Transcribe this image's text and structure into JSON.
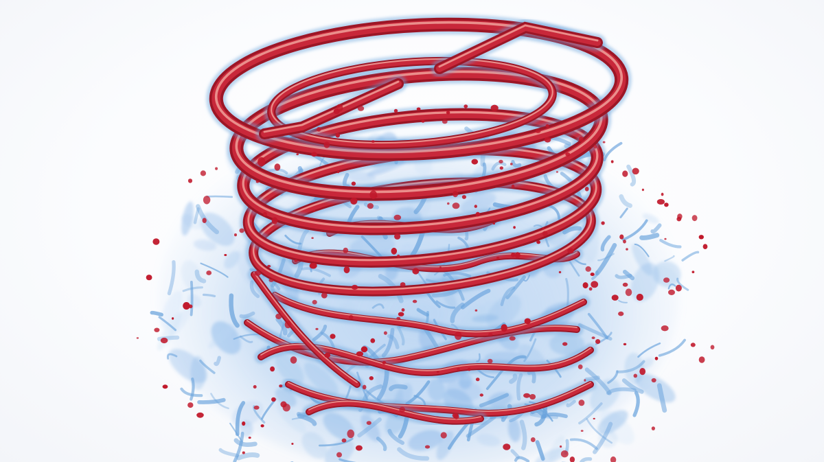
{
  "scene": {
    "subject": "vortex-filament-render",
    "colors": {
      "background": "#ffffff",
      "tube_core": "#c8283a",
      "tube_dark": "#9c1626",
      "tube_highlight": "#f2a7a0",
      "tube_halo": "#6aa3dc",
      "cloud": "#7fb0e6",
      "cloud_light": "#bcd6f3",
      "droplet": "#c0182b"
    }
  }
}
